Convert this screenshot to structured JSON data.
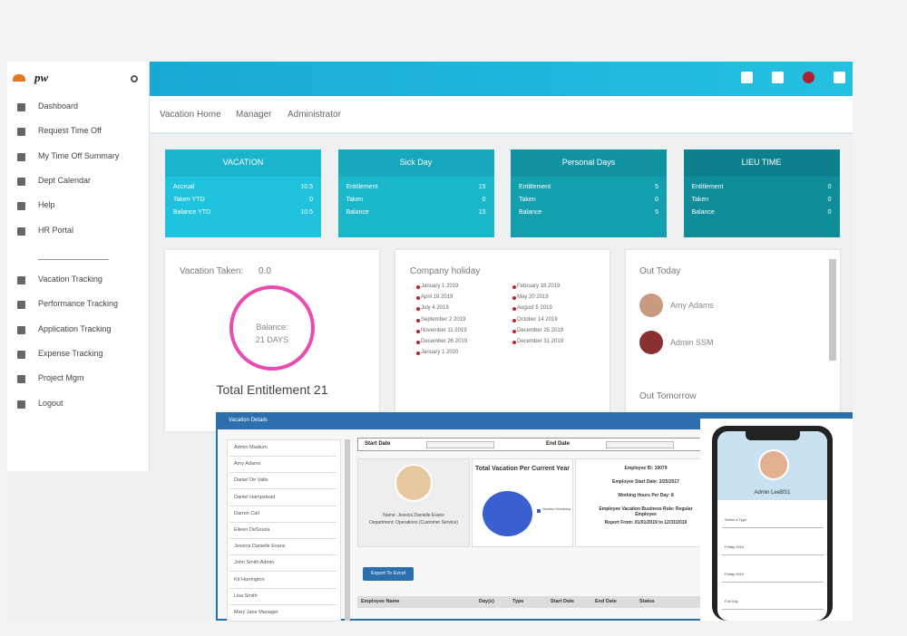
{
  "sidebar": {
    "logo": "pw",
    "items": [
      "Dashboard",
      "Request Time Off",
      "My Time Off Summary",
      "Dept Calendar",
      "Help",
      "HR Portal"
    ],
    "items2": [
      "Vacation Tracking",
      "Performance Tracking",
      "Application Tracking",
      "Expense Tracking",
      "Project Mgm",
      "Logout"
    ]
  },
  "tabs": [
    "Vacation Home",
    "Manager",
    "Administrator"
  ],
  "cards": [
    {
      "title": "VACATION",
      "rows": [
        [
          "Accrual",
          "10.5"
        ],
        [
          "Taken YTD",
          "0"
        ],
        [
          "Balance YTD",
          "10.5"
        ]
      ]
    },
    {
      "title": "Sick Day",
      "rows": [
        [
          "Entitlement",
          "15"
        ],
        [
          "Taken",
          "0"
        ],
        [
          "Balance",
          "15"
        ]
      ]
    },
    {
      "title": "Personal Days",
      "rows": [
        [
          "Entitlement",
          "5"
        ],
        [
          "Taken",
          "0"
        ],
        [
          "Balance",
          "5"
        ]
      ]
    },
    {
      "title": "LIEU TIME",
      "rows": [
        [
          "Entitlement",
          "0"
        ],
        [
          "Taken",
          "0"
        ],
        [
          "Balance",
          "0"
        ]
      ]
    }
  ],
  "vacation": {
    "taken_label": "Vacation Taken:",
    "taken": "0.0",
    "balance_label": "Balance:",
    "balance": "21 DAYS",
    "total": "Total Entitlement 21"
  },
  "holidays": {
    "title": "Company holiday",
    "left": [
      "January 1 2019",
      "April 19 2019",
      "July 4 2019",
      "September 2 2019",
      "November 11 2019",
      "December 26 2019",
      "January 1 2020"
    ],
    "right": [
      "February 18 2019",
      "May 20 2019",
      "August 5 2019",
      "October 14 2019",
      "December 25 2019",
      "December 31 2019"
    ]
  },
  "out": {
    "today": "Out Today",
    "people": [
      "Amy Adams",
      "Admin SSM"
    ],
    "tomorrow": "Out Tomorrow"
  },
  "details": {
    "title": "Vacation Details",
    "employees": [
      "Admin Madium",
      "Amy Adams",
      "Daniel De Valle",
      "Daniel Hampstead",
      "Darren Call",
      "Eileen DeSouza",
      "Jessica Danielle Evans",
      "John Smith Admin",
      "Kit Harrington",
      "Lisa Smith",
      "Mary Jane Manager"
    ],
    "start_label": "Start Date",
    "end_label": "End Date",
    "chart_title": "Total Vacation Per Current Year",
    "legend": "Vacation Remaining",
    "name_line": "Name: Jessica Danielle Evans",
    "dept_line": "Department: Operations (Customer Service)",
    "info": [
      "Employee ID: 10079",
      "Employee Start Date: 3/25/2017",
      "Working Hours Per Day: 8",
      "Employee Vacation Business Rule: Regular Employee",
      "Report From: 01/01/2019 to 12/31/2019"
    ],
    "export": "Export To Excel",
    "columns": [
      "Employee Name",
      "Day(s)",
      "Type",
      "Start Date",
      "End Date",
      "Status"
    ]
  },
  "phone": {
    "name": "Admin LeeBS1",
    "fields": [
      "Select a Type",
      "Friday 2019",
      "Friday 2019",
      "Full Day"
    ]
  }
}
